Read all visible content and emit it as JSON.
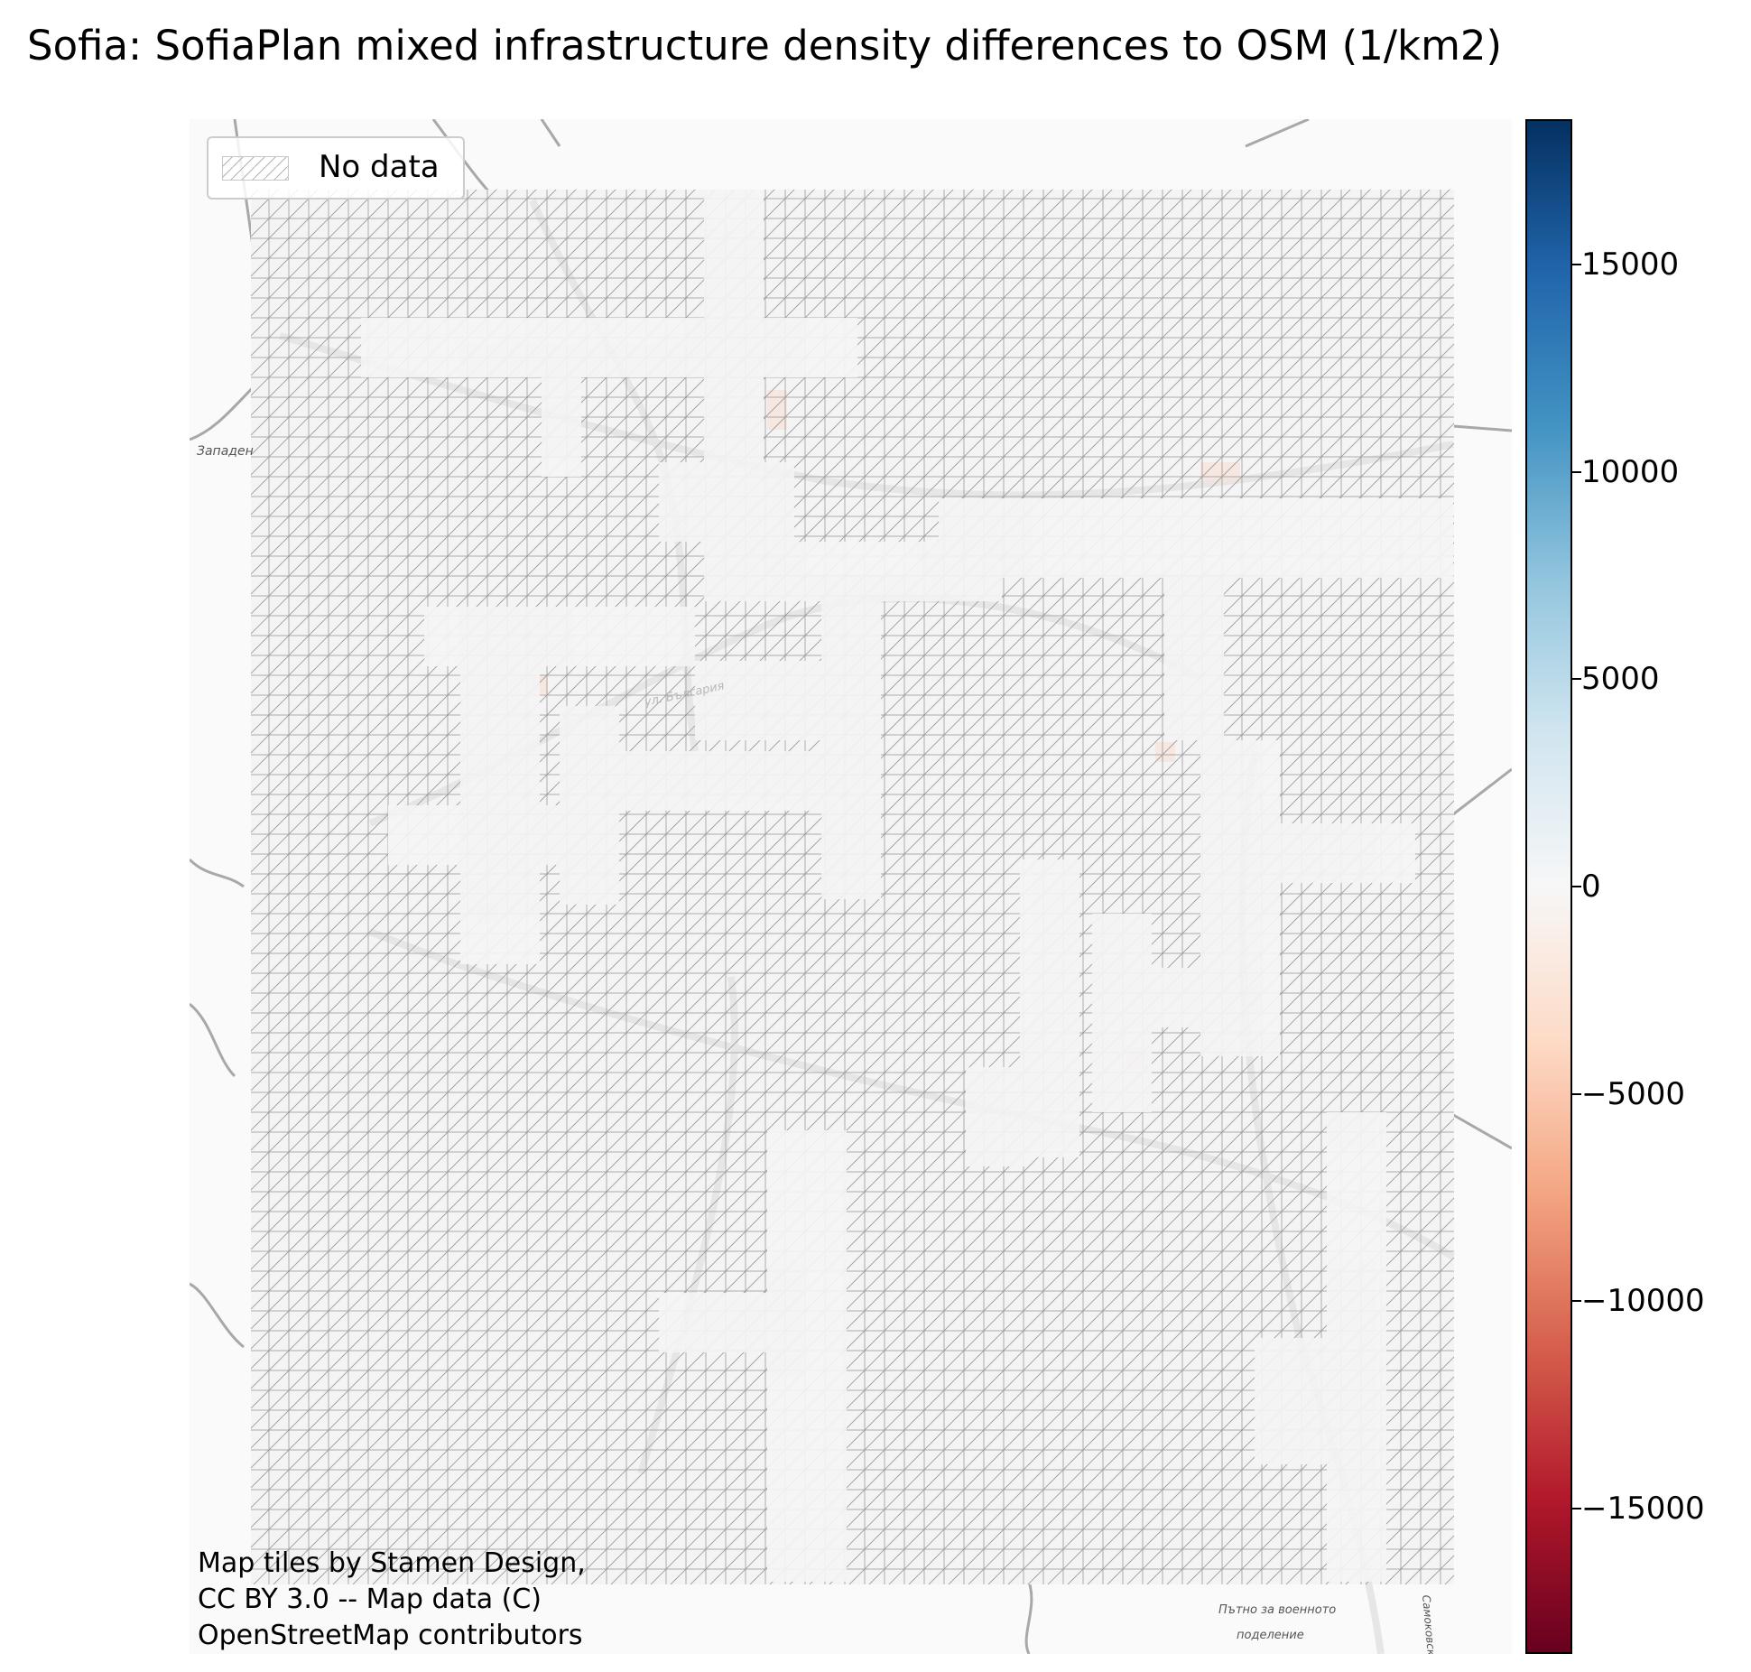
{
  "title": "Sofia: SofiaPlan mixed infrastructure density differences to OSM (1/km2)",
  "legend": {
    "label": "No data"
  },
  "attribution": {
    "line1": "Map tiles by Stamen Design,",
    "line2": "CC BY 3.0 -- Map data (C)",
    "line3": "OpenStreetMap contributors"
  },
  "map_labels": [
    "Западен",
    "ул. България",
    "Пътно за военното",
    "поделение",
    "Самоковско"
  ],
  "colorbar": {
    "colormap": "RdBu",
    "min": -18500,
    "max": 18500,
    "ticks": [
      {
        "value": 15000,
        "label": "15000"
      },
      {
        "value": 10000,
        "label": "10000"
      },
      {
        "value": 5000,
        "label": "5000"
      },
      {
        "value": 0,
        "label": "0"
      },
      {
        "value": -5000,
        "label": "−5000"
      },
      {
        "value": -10000,
        "label": "−10000"
      },
      {
        "value": -15000,
        "label": "−15000"
      }
    ],
    "colors": [
      "#67001f",
      "#b2182b",
      "#d6604d",
      "#f4a582",
      "#fddbc7",
      "#f7f7f7",
      "#d1e5f0",
      "#92c5de",
      "#4393c3",
      "#2166ac",
      "#053061"
    ]
  },
  "grid": {
    "pattern": "hatched-no-data",
    "fill": "#f5f5f5",
    "line_color": "#8a8a8a"
  }
}
